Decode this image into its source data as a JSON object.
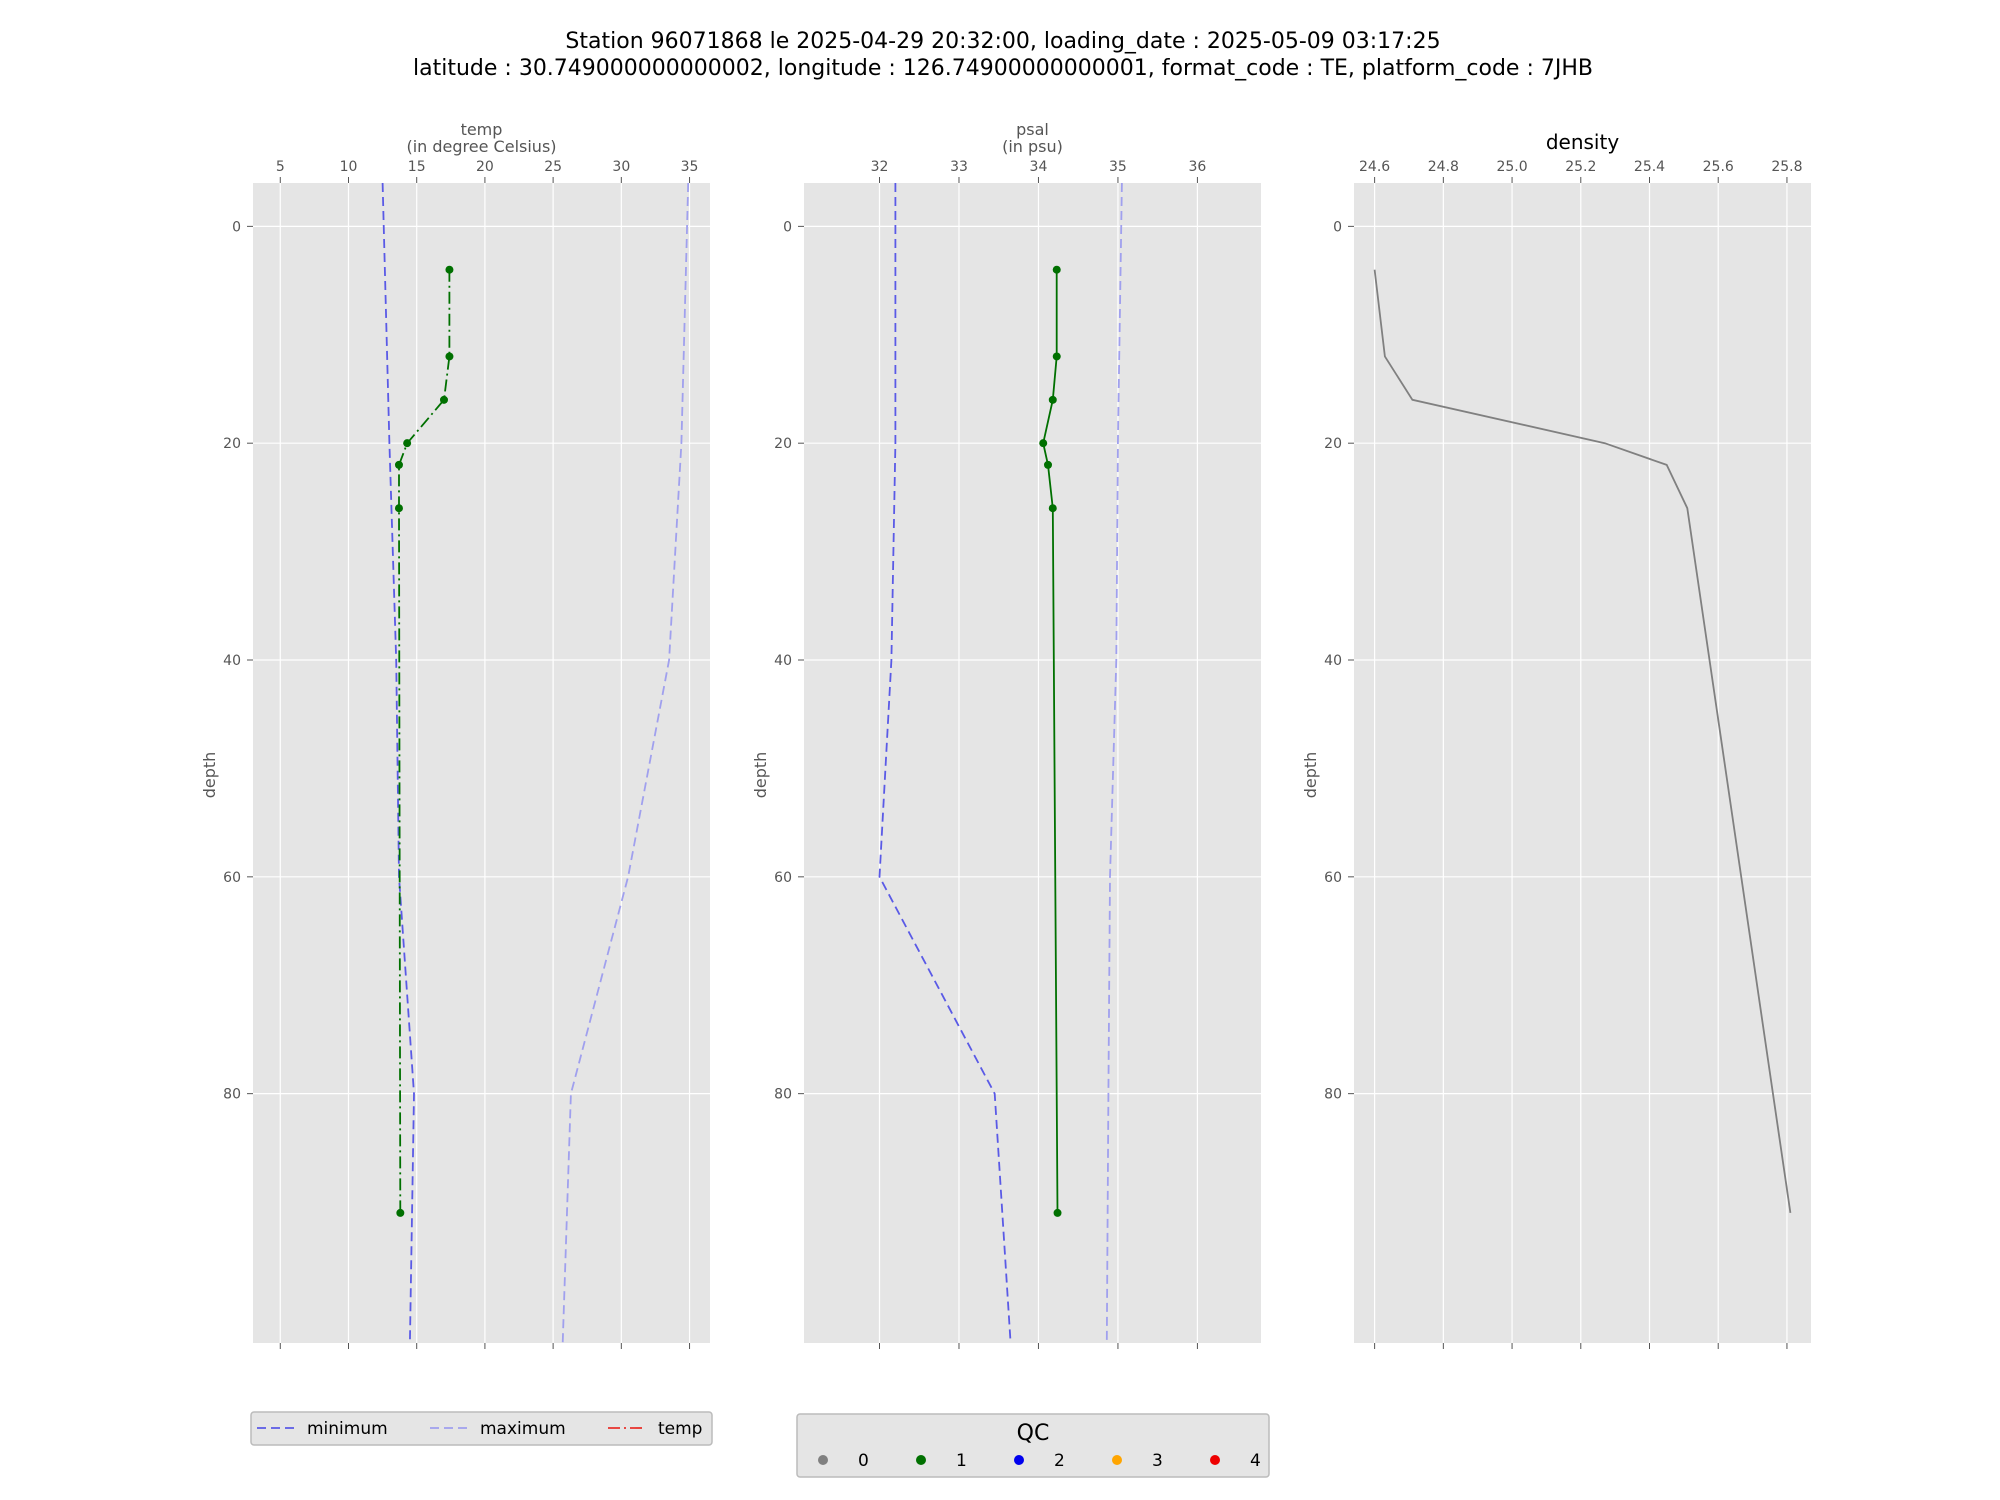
{
  "title_line1": "Station 96071868 le 2025-04-29 20:32:00, loading_date : 2025-05-09 03:17:25",
  "title_line2": "latitude : 30.749000000000002, longitude : 126.74900000000001, format_code : TE, platform_code : 7JHB",
  "colors": {
    "background": "#e5e5e5",
    "grid": "#ffffff",
    "minimum": "#5a5ae6",
    "maximum": "#a0a0ee",
    "qc1": "#007000",
    "density": "#808080",
    "temp_legend": "#e8322c"
  },
  "legend_temp": {
    "entries": [
      {
        "label": "minimum",
        "color": "#5a5ae6",
        "dash": "dashed"
      },
      {
        "label": "maximum",
        "color": "#a0a0ee",
        "dash": "dashed"
      },
      {
        "label": "temp",
        "color": "#e8322c",
        "dash": "dashdot"
      }
    ]
  },
  "legend_qc": {
    "title": "QC",
    "entries": [
      {
        "label": "0",
        "color": "#808080"
      },
      {
        "label": "1",
        "color": "#007000"
      },
      {
        "label": "2",
        "color": "#0000ee"
      },
      {
        "label": "3",
        "color": "#ffa500"
      },
      {
        "label": "4",
        "color": "#ee0000"
      }
    ]
  },
  "chart_data": [
    {
      "type": "line",
      "title": "temp\n(in degree Celsius)",
      "ylabel": "depth",
      "xlim": [
        3,
        36.5
      ],
      "ylim": [
        103,
        -4
      ],
      "xticks": [
        5,
        10,
        15,
        20,
        25,
        30,
        35
      ],
      "yticks": [
        0,
        20,
        40,
        60,
        80
      ],
      "series": [
        {
          "name": "minimum",
          "style": "dashed",
          "color": "#5a5ae6",
          "x": [
            12.5,
            13.0,
            13.5,
            13.7,
            14.8,
            14.5
          ],
          "y": [
            -4,
            20,
            40,
            60,
            80,
            103
          ]
        },
        {
          "name": "maximum",
          "style": "dashed",
          "color": "#a0a0ee",
          "x": [
            34.9,
            34.4,
            33.5,
            30.5,
            26.3,
            25.7
          ],
          "y": [
            -4,
            20,
            40,
            60,
            80,
            103
          ]
        },
        {
          "name": "temp",
          "style": "dashdot",
          "color": "#007000",
          "markers": true,
          "x": [
            17.4,
            17.4,
            17.0,
            14.3,
            13.7,
            13.7,
            13.8
          ],
          "y": [
            4,
            12,
            16,
            20,
            22,
            26,
            91
          ]
        }
      ]
    },
    {
      "type": "line",
      "title": "psal\n(in psu)",
      "ylabel": "depth",
      "xlim": [
        31.05,
        36.8
      ],
      "ylim": [
        103,
        -4
      ],
      "xticks": [
        32,
        33,
        34,
        35,
        36
      ],
      "yticks": [
        0,
        20,
        40,
        60,
        80
      ],
      "series": [
        {
          "name": "minimum",
          "style": "dashed",
          "color": "#5a5ae6",
          "x": [
            32.2,
            32.2,
            32.15,
            32.0,
            33.45,
            33.65
          ],
          "y": [
            -4,
            20,
            40,
            60,
            80,
            103
          ]
        },
        {
          "name": "maximum",
          "style": "dashed",
          "color": "#a0a0ee",
          "x": [
            35.05,
            35.0,
            34.98,
            34.9,
            34.88,
            34.86
          ],
          "y": [
            -4,
            20,
            40,
            60,
            80,
            103
          ]
        },
        {
          "name": "psal",
          "style": "solid",
          "color": "#007000",
          "markers": true,
          "x": [
            34.23,
            34.23,
            34.18,
            34.06,
            34.12,
            34.18,
            34.24
          ],
          "y": [
            4,
            12,
            16,
            20,
            22,
            26,
            91
          ]
        }
      ]
    },
    {
      "type": "line",
      "title": "density",
      "ylabel": "depth",
      "xlim": [
        24.54,
        25.87
      ],
      "ylim": [
        103,
        -4
      ],
      "xticks": [
        24.6,
        24.8,
        25.0,
        25.2,
        25.4,
        25.6,
        25.8
      ],
      "xtick_labels": [
        "24.6",
        "24.8",
        "25.0",
        "25.2",
        "25.4",
        "25.6",
        "25.8"
      ],
      "yticks": [
        0,
        20,
        40,
        60,
        80
      ],
      "series": [
        {
          "name": "density",
          "style": "solid",
          "color": "#808080",
          "x": [
            24.6,
            24.63,
            24.71,
            25.27,
            25.45,
            25.51,
            25.81
          ],
          "y": [
            4,
            12,
            16,
            20,
            22,
            26,
            91
          ]
        }
      ]
    }
  ]
}
